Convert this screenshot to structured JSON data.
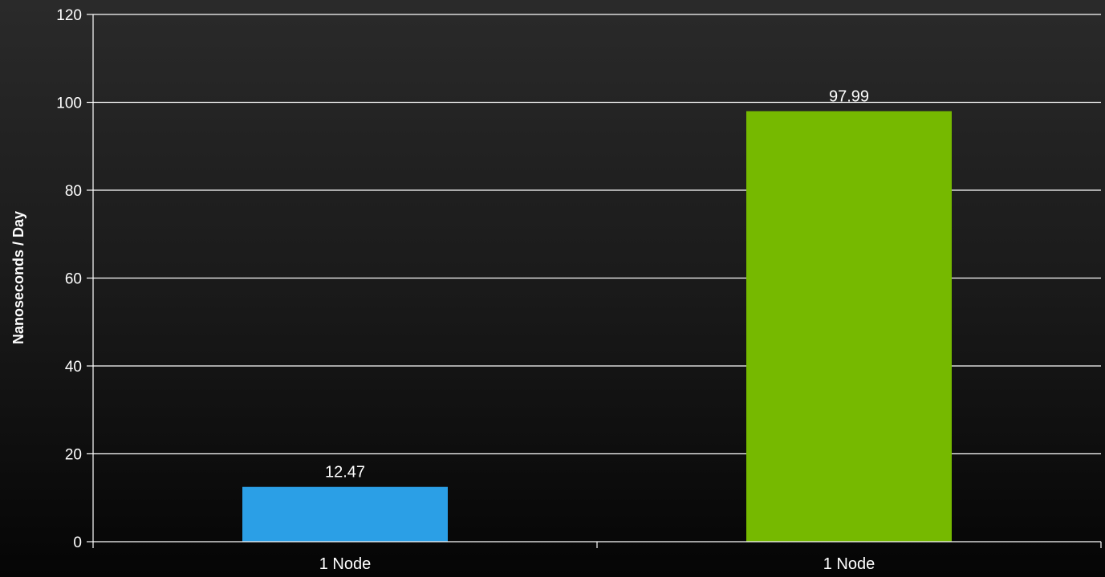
{
  "chart_data": {
    "type": "bar",
    "categories": [
      "1 Node",
      "1 Node"
    ],
    "values": [
      12.47,
      97.99
    ],
    "data_labels": [
      "12.47",
      "97.99"
    ],
    "bar_colors": [
      "#2b9fe6",
      "#76b900"
    ],
    "title": "",
    "xlabel": "",
    "ylabel": "Nanoseconds / Day",
    "ylim": [
      0,
      120
    ],
    "yticks": [
      0,
      20,
      40,
      60,
      80,
      100,
      120
    ],
    "grid": true,
    "legend": "none",
    "colors": {
      "background_top": "#2a2a2a",
      "background_bottom": "#050505",
      "gridline": "#ffffff",
      "axis": "#ffffff",
      "text": "#ffffff"
    }
  }
}
